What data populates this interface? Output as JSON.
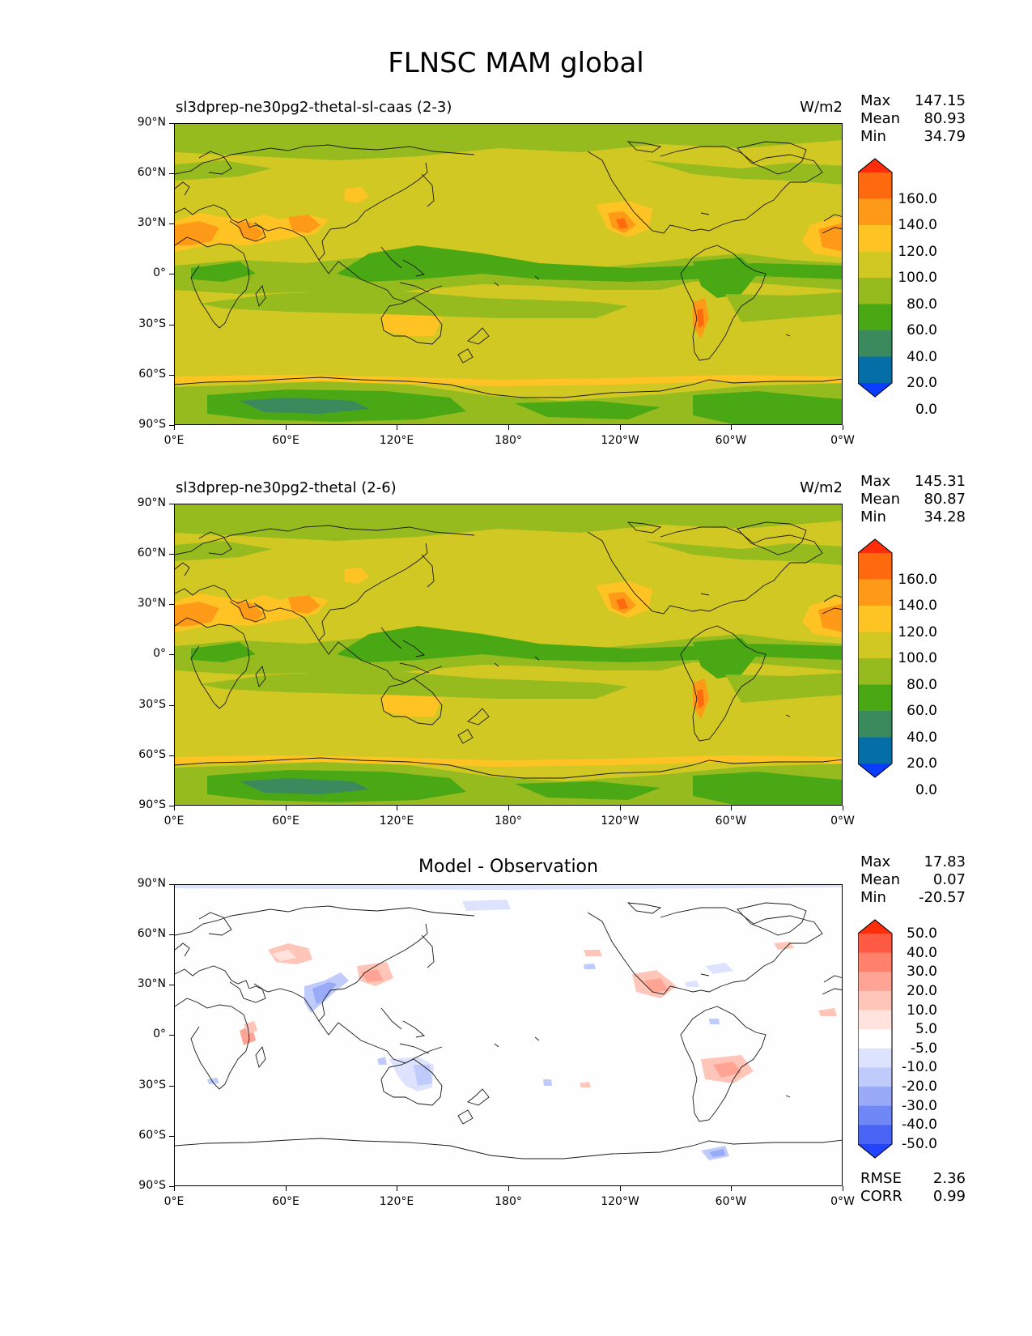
{
  "title": "FLNSC MAM global",
  "lat_labels": [
    "90°N",
    "60°N",
    "30°N",
    "0°",
    "30°S",
    "60°S",
    "90°S"
  ],
  "lon_labels": [
    "0°E",
    "60°E",
    "120°E",
    "180°",
    "120°W",
    "60°W",
    "0°W"
  ],
  "panels": [
    {
      "title": "sl3dprep-ne30pg2-thetal-sl-caas (2-3)",
      "units": "W/m2",
      "stats": [
        {
          "label": "Max",
          "value": "147.15"
        },
        {
          "label": "Mean",
          "value": "80.93"
        },
        {
          "label": "Min",
          "value": "34.79"
        }
      ],
      "colorbar": {
        "ticks": [
          "160.0",
          "140.0",
          "120.0",
          "100.0",
          "80.0",
          "60.0",
          "40.0",
          "20.0",
          "0.0"
        ],
        "colors": [
          "#ff2d0a",
          "#ff6a0f",
          "#ff9a18",
          "#ffc424",
          "#d2c823",
          "#96bb1e",
          "#4aa814",
          "#3b8a5e",
          "#066ea6",
          "#0a3dff"
        ]
      }
    },
    {
      "title": "sl3dprep-ne30pg2-thetal (2-6)",
      "units": "W/m2",
      "stats": [
        {
          "label": "Max",
          "value": "145.31"
        },
        {
          "label": "Mean",
          "value": "80.87"
        },
        {
          "label": "Min",
          "value": "34.28"
        }
      ],
      "colorbar": {
        "ticks": [
          "160.0",
          "140.0",
          "120.0",
          "100.0",
          "80.0",
          "60.0",
          "40.0",
          "20.0",
          "0.0"
        ],
        "colors": [
          "#ff2d0a",
          "#ff6a0f",
          "#ff9a18",
          "#ffc424",
          "#d2c823",
          "#96bb1e",
          "#4aa814",
          "#3b8a5e",
          "#066ea6",
          "#0a3dff"
        ]
      }
    },
    {
      "title": "Model - Observation",
      "units": "",
      "stats": [
        {
          "label": "Max",
          "value": "17.83"
        },
        {
          "label": "Mean",
          "value": "0.07"
        },
        {
          "label": "Min",
          "value": "-20.57"
        }
      ],
      "colorbar": {
        "ticks": [
          "50.0",
          "40.0",
          "30.0",
          "20.0",
          "10.0",
          "5.0",
          "-5.0",
          "-10.0",
          "-20.0",
          "-30.0",
          "-40.0",
          "-50.0"
        ],
        "colors": [
          "#ff2d0a",
          "#ff5a44",
          "#ff806b",
          "#ffa494",
          "#ffc5b8",
          "#ffe3dc",
          "#ffffff",
          "#dde3fd",
          "#bfccfb",
          "#98aaf8",
          "#7088f6",
          "#4a64f5",
          "#2344ff"
        ]
      },
      "footer": [
        {
          "label": "RMSE",
          "value": "2.36"
        },
        {
          "label": "CORR",
          "value": "0.99"
        }
      ]
    }
  ]
}
